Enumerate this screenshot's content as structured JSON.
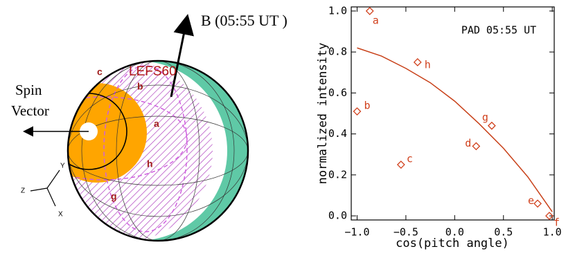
{
  "diagram": {
    "b_field": "B (05:55 UT )",
    "detector": "LEFS60",
    "spin": "Spin",
    "vector": "Vector",
    "regions": [
      "c",
      "b",
      "a",
      "h",
      "g"
    ],
    "axes": [
      "Z",
      "Y",
      "X"
    ]
  },
  "chart_data": {
    "type": "scatter",
    "annotation": "PAD 05:55 UT",
    "xlabel": "cos(pitch angle)",
    "ylabel": "normalized intensity",
    "xlim": [
      -1.06,
      1.02
    ],
    "ylim": [
      -0.02,
      1.02
    ],
    "xticks": [
      {
        "value": -1,
        "label": "−1.0"
      },
      {
        "value": -0.5,
        "label": "−0.5"
      },
      {
        "value": 0,
        "label": "0.0"
      },
      {
        "value": 0.5,
        "label": "0.5"
      },
      {
        "value": 1,
        "label": "1.0"
      }
    ],
    "yticks": [
      {
        "value": 0,
        "label": "0.0"
      },
      {
        "value": 0.2,
        "label": "0.2"
      },
      {
        "value": 0.4,
        "label": "0.4"
      },
      {
        "value": 0.6,
        "label": "0.6"
      },
      {
        "value": 0.8,
        "label": "0.8"
      },
      {
        "value": 1,
        "label": "1.0"
      }
    ],
    "series": [
      {
        "type": "scatter",
        "color": "#d0401c",
        "labels": [
          "a",
          "b",
          "h",
          "c",
          "g",
          "d",
          "e",
          "f"
        ],
        "x": [
          -0.87,
          -1.0,
          -0.38,
          -0.55,
          0.38,
          0.22,
          0.85,
          0.97
        ],
        "y": [
          1.0,
          0.51,
          0.75,
          0.25,
          0.44,
          0.34,
          0.06,
          0.0
        ]
      },
      {
        "type": "line",
        "color": "#c84018",
        "x": [
          -1.0,
          -0.75,
          -0.5,
          -0.25,
          0.0,
          0.25,
          0.5,
          0.75,
          1.0
        ],
        "y": [
          0.82,
          0.78,
          0.72,
          0.65,
          0.56,
          0.45,
          0.33,
          0.19,
          0.02
        ]
      }
    ]
  }
}
